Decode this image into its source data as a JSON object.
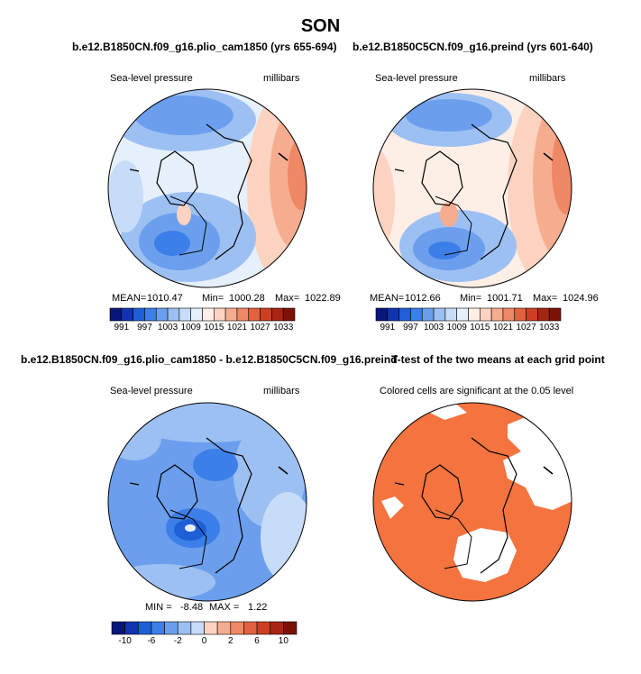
{
  "page": {
    "title": "SON"
  },
  "chart_data": [
    {
      "type": "heatmap",
      "panel_id": "p1",
      "title": "b.e12.B1850CN.f09_g16.plio_cam1850 (yrs 655-694)",
      "left_label": "Sea-level pressure",
      "right_label": "millibars",
      "stats": {
        "mean_label": "MEAN=",
        "mean": "1010.47",
        "min_label": "Min=",
        "min": "1000.28",
        "max_label": "Max=",
        "max": "1022.89"
      },
      "colorbar": {
        "levels": [
          "991",
          "997",
          "1003",
          "1009",
          "1015",
          "1021",
          "1027",
          "1033"
        ]
      }
    },
    {
      "type": "heatmap",
      "panel_id": "p2",
      "title": "b.e12.B1850C5CN.f09_g16.preind (yrs 601-640)",
      "left_label": "Sea-level pressure",
      "right_label": "millibars",
      "stats": {
        "mean_label": "MEAN=",
        "mean": "1012.66",
        "min_label": "Min=",
        "min": "1001.71",
        "max_label": "Max=",
        "max": "1024.96"
      },
      "colorbar": {
        "levels": [
          "991",
          "997",
          "1003",
          "1009",
          "1015",
          "1021",
          "1027",
          "1033"
        ]
      }
    },
    {
      "type": "heatmap",
      "panel_id": "p3",
      "title": "b.e12.B1850CN.f09_g16.plio_cam1850 - b.e12.B1850C5CN.f09_g16.preind",
      "left_label": "Sea-level pressure",
      "right_label": "millibars",
      "stats": {
        "min_label": "MIN =",
        "min": "-8.48",
        "max_label": "MAX =",
        "max": "1.22"
      },
      "colorbar": {
        "levels": [
          "-10",
          "-6",
          "-2",
          "0",
          "2",
          "6",
          "10"
        ]
      }
    },
    {
      "type": "heatmap",
      "panel_id": "p4",
      "title": "T-test of the two means at each grid point",
      "left_label": "Colored cells are significant at the 0.05 level"
    }
  ],
  "colors": {
    "abs_scale": [
      "#08167a",
      "#1133b0",
      "#1e5fd6",
      "#3d7fe8",
      "#6b9fee",
      "#9dc0f3",
      "#c6dcf8",
      "#e6f0fc",
      "#fdeee6",
      "#fbd3c0",
      "#f6ad8f",
      "#ef8864",
      "#e3613e",
      "#cc3f22",
      "#a82512",
      "#7c1206"
    ],
    "diff_scale": [
      "#08167a",
      "#1133b0",
      "#1e5fd6",
      "#3d7fe8",
      "#6b9fee",
      "#9dc0f3",
      "#c6dcf8",
      "#fbd3c0",
      "#f6ad8f",
      "#ef8864",
      "#e3613e",
      "#cc3f22",
      "#a82512",
      "#7c1206"
    ],
    "ttest_fill": "#f4733e"
  }
}
